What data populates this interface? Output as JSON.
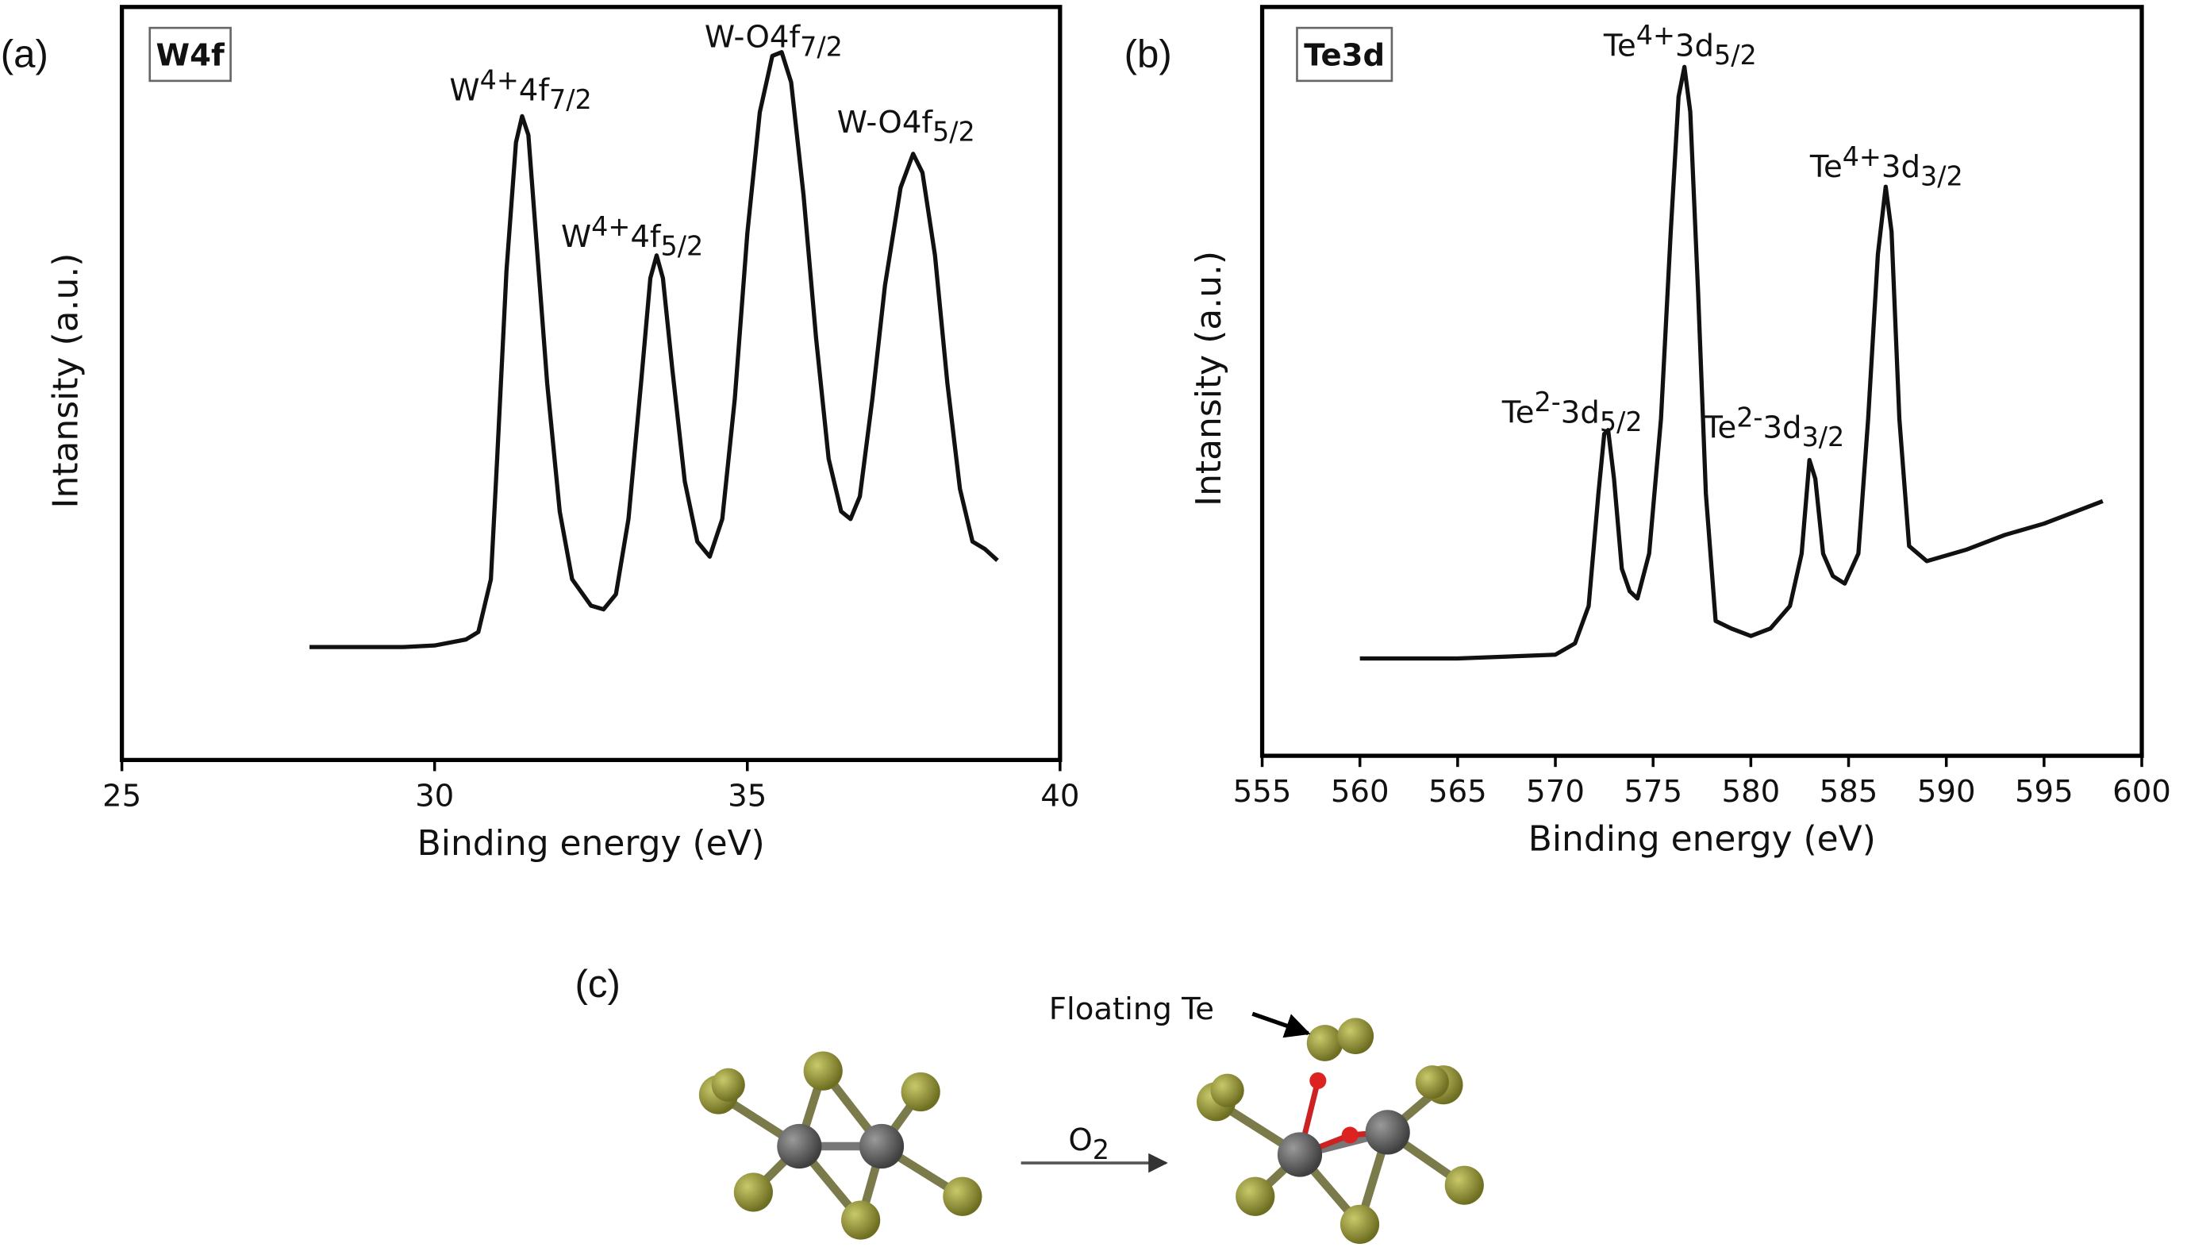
{
  "chart_data": [
    {
      "type": "line",
      "panel_label": "(a)",
      "box_label": "W4f",
      "x_label": "Binding energy (eV)",
      "y_label": "Intansity (a.u.)",
      "xlim": [
        25,
        40
      ],
      "xticks": [
        25,
        30,
        35,
        40
      ],
      "ylim": [
        0,
        100
      ],
      "color": "#111111",
      "x": [
        28.0,
        28.5,
        29.0,
        29.5,
        30.0,
        30.5,
        30.7,
        30.9,
        31.0,
        31.15,
        31.3,
        31.4,
        31.5,
        31.6,
        31.8,
        32.0,
        32.2,
        32.5,
        32.7,
        32.9,
        33.1,
        33.3,
        33.45,
        33.55,
        33.65,
        33.8,
        34.0,
        34.2,
        34.4,
        34.6,
        34.8,
        35.0,
        35.2,
        35.4,
        35.55,
        35.7,
        35.9,
        36.1,
        36.3,
        36.5,
        36.65,
        36.8,
        37.0,
        37.2,
        37.45,
        37.65,
        37.8,
        38.0,
        38.2,
        38.4,
        38.6,
        38.8,
        39.0
      ],
      "values": [
        15,
        15,
        15,
        15,
        15.2,
        16,
        17,
        24,
        40,
        65,
        82,
        85.5,
        83,
        72,
        50,
        33,
        24,
        20.5,
        20,
        22,
        32,
        50,
        64,
        67,
        64,
        52,
        37,
        29,
        27,
        32,
        48,
        70,
        86,
        93.5,
        94,
        90,
        75,
        56,
        40,
        33,
        32,
        35,
        48,
        63,
        76,
        80.5,
        78,
        67,
        50,
        36,
        29,
        28,
        26.5
      ],
      "annotations": [
        [
          {
            "text": "W"
          },
          {
            "text": "4+",
            "style": "sup"
          },
          {
            "text": "4f"
          },
          {
            "text": "7/2",
            "style": "sub"
          }
        ],
        [
          {
            "text": "W"
          },
          {
            "text": "4+",
            "style": "sup"
          },
          {
            "text": "4f"
          },
          {
            "text": "5/2",
            "style": "sub"
          }
        ],
        [
          {
            "text": "W-O4f"
          },
          {
            "text": "7/2",
            "style": "sub"
          }
        ],
        [
          {
            "text": "W-O4f"
          },
          {
            "text": "5/2",
            "style": "sub"
          }
        ]
      ]
    },
    {
      "type": "line",
      "panel_label": "(b)",
      "box_label": "Te3d",
      "x_label": "Binding energy (eV)",
      "y_label": "Intansity (a.u.)",
      "xlim": [
        555,
        600
      ],
      "xticks": [
        555,
        560,
        565,
        570,
        575,
        580,
        585,
        590,
        595,
        600
      ],
      "ylim": [
        0,
        100
      ],
      "color": "#111111",
      "x": [
        560,
        565,
        570,
        571,
        571.7,
        572.2,
        572.5,
        572.7,
        573,
        573.4,
        573.8,
        574.2,
        574.8,
        575.4,
        575.9,
        576.3,
        576.6,
        576.9,
        577.3,
        577.7,
        578.2,
        579,
        580,
        581,
        582,
        582.6,
        583,
        583.3,
        583.7,
        584.2,
        584.8,
        585.5,
        586,
        586.5,
        586.9,
        587.2,
        587.6,
        588.1,
        589,
        591,
        593,
        595,
        597,
        598
      ],
      "values": [
        13,
        13,
        13.5,
        15,
        20,
        35,
        43,
        43.5,
        37,
        25,
        22,
        21,
        27,
        45,
        70,
        88,
        92,
        86,
        62,
        35,
        18,
        17,
        16,
        17,
        20,
        27,
        39.5,
        37,
        27,
        24,
        23,
        27,
        45,
        67,
        76,
        70,
        45,
        28,
        26,
        27.5,
        29.5,
        31,
        33,
        34
      ],
      "annotations": [
        [
          {
            "text": "Te"
          },
          {
            "text": "4+",
            "style": "sup"
          },
          {
            "text": "3d"
          },
          {
            "text": "5/2",
            "style": "sub"
          }
        ],
        [
          {
            "text": "Te"
          },
          {
            "text": "4+",
            "style": "sup"
          },
          {
            "text": "3d"
          },
          {
            "text": "3/2",
            "style": "sub"
          }
        ],
        [
          {
            "text": "Te"
          },
          {
            "text": "2-",
            "style": "sup"
          },
          {
            "text": "3d"
          },
          {
            "text": "5/2",
            "style": "sub"
          }
        ],
        [
          {
            "text": "Te"
          },
          {
            "text": "2-",
            "style": "sup"
          },
          {
            "text": "3d"
          },
          {
            "text": "3/2",
            "style": "sub"
          }
        ]
      ]
    }
  ],
  "diagram": {
    "label": "(c)",
    "floating_label": "Floating Te",
    "reactant": [
      {
        "text": "O"
      },
      {
        "text": "2",
        "style": "sub"
      }
    ]
  }
}
